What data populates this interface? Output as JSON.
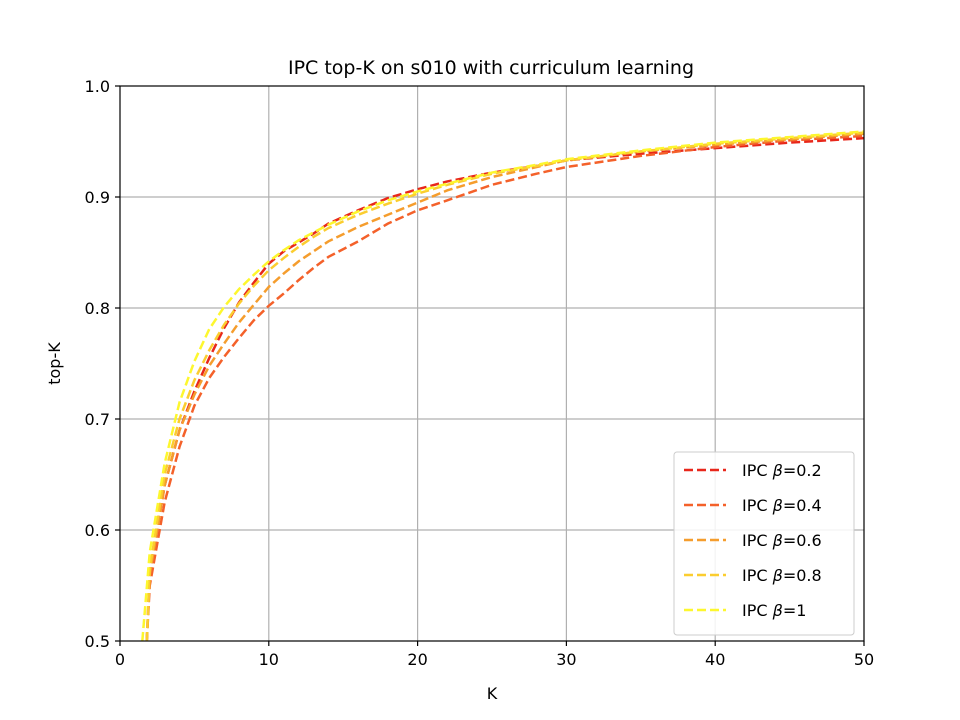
{
  "chart_data": {
    "type": "line",
    "title": "IPC top-K on s010 with curriculum learning",
    "xlabel": "K",
    "ylabel": "top-K",
    "xlim": [
      0,
      50
    ],
    "ylim": [
      0.5,
      1.0
    ],
    "xticks": [
      0,
      10,
      20,
      30,
      40,
      50
    ],
    "yticks": [
      0.5,
      0.6,
      0.7,
      0.8,
      0.9,
      1.0
    ],
    "ytick_labels": [
      "0.5",
      "0.6",
      "0.7",
      "0.8",
      "0.9",
      "1.0"
    ],
    "grid": true,
    "legend_position": "lower-right",
    "series": [
      {
        "name": "IPC β=0.2",
        "legend_prefix": "IPC ",
        "legend_var": "β",
        "legend_value": "=0.2",
        "color": "#e8271b",
        "x": [
          1.8,
          2,
          3,
          4,
          5,
          6,
          7,
          8,
          9,
          10,
          11,
          12,
          13,
          14,
          16,
          18,
          20,
          22,
          25,
          28,
          30,
          35,
          40,
          45,
          50
        ],
        "y": [
          0.5,
          0.56,
          0.64,
          0.69,
          0.725,
          0.755,
          0.782,
          0.805,
          0.823,
          0.84,
          0.851,
          0.859,
          0.867,
          0.876,
          0.888,
          0.899,
          0.907,
          0.914,
          0.922,
          0.928,
          0.933,
          0.939,
          0.944,
          0.949,
          0.953
        ]
      },
      {
        "name": "IPC β=0.4",
        "legend_prefix": "IPC ",
        "legend_var": "β",
        "legend_value": "=0.4",
        "color": "#f4612a",
        "x": [
          1.8,
          2,
          3,
          4,
          5,
          6,
          7,
          8,
          9,
          10,
          11,
          12,
          13,
          14,
          16,
          18,
          20,
          22,
          25,
          28,
          30,
          35,
          40,
          45,
          50
        ],
        "y": [
          0.5,
          0.55,
          0.625,
          0.675,
          0.712,
          0.737,
          0.756,
          0.773,
          0.789,
          0.802,
          0.813,
          0.825,
          0.836,
          0.846,
          0.86,
          0.876,
          0.888,
          0.897,
          0.911,
          0.921,
          0.927,
          0.937,
          0.945,
          0.951,
          0.955
        ]
      },
      {
        "name": "IPC β=0.6",
        "legend_prefix": "IPC ",
        "legend_var": "β",
        "legend_value": "=0.6",
        "color": "#f59d2d",
        "x": [
          1.8,
          2,
          3,
          4,
          5,
          6,
          7,
          8,
          9,
          10,
          11,
          12,
          13,
          14,
          16,
          18,
          20,
          22,
          25,
          28,
          30,
          35,
          40,
          45,
          50
        ],
        "y": [
          0.5,
          0.56,
          0.64,
          0.69,
          0.722,
          0.748,
          0.768,
          0.787,
          0.803,
          0.819,
          0.831,
          0.842,
          0.851,
          0.86,
          0.873,
          0.884,
          0.895,
          0.906,
          0.918,
          0.927,
          0.933,
          0.941,
          0.947,
          0.952,
          0.957
        ]
      },
      {
        "name": "IPC β=0.8",
        "legend_prefix": "IPC ",
        "legend_var": "β",
        "legend_value": "=0.8",
        "color": "#fbcd2f",
        "x": [
          1.8,
          2,
          3,
          4,
          5,
          6,
          7,
          8,
          9,
          10,
          11,
          12,
          13,
          14,
          16,
          18,
          20,
          22,
          25,
          28,
          30,
          35,
          40,
          45,
          50
        ],
        "y": [
          0.5,
          0.565,
          0.65,
          0.7,
          0.735,
          0.762,
          0.785,
          0.804,
          0.82,
          0.834,
          0.845,
          0.855,
          0.864,
          0.872,
          0.884,
          0.894,
          0.903,
          0.911,
          0.921,
          0.928,
          0.933,
          0.941,
          0.948,
          0.953,
          0.958
        ]
      },
      {
        "name": "IPC β=1",
        "legend_prefix": "IPC ",
        "legend_var": "β",
        "legend_value": "=1",
        "color": "#fdf72e",
        "x": [
          1.5,
          2,
          3,
          4,
          5,
          6,
          7,
          8,
          9,
          10,
          11,
          12,
          13,
          14,
          16,
          18,
          20,
          22,
          25,
          28,
          30,
          35,
          40,
          45,
          50
        ],
        "y": [
          0.5,
          0.58,
          0.66,
          0.715,
          0.752,
          0.781,
          0.801,
          0.817,
          0.83,
          0.842,
          0.852,
          0.861,
          0.868,
          0.875,
          0.887,
          0.897,
          0.905,
          0.912,
          0.922,
          0.929,
          0.934,
          0.942,
          0.949,
          0.954,
          0.959
        ]
      }
    ]
  }
}
